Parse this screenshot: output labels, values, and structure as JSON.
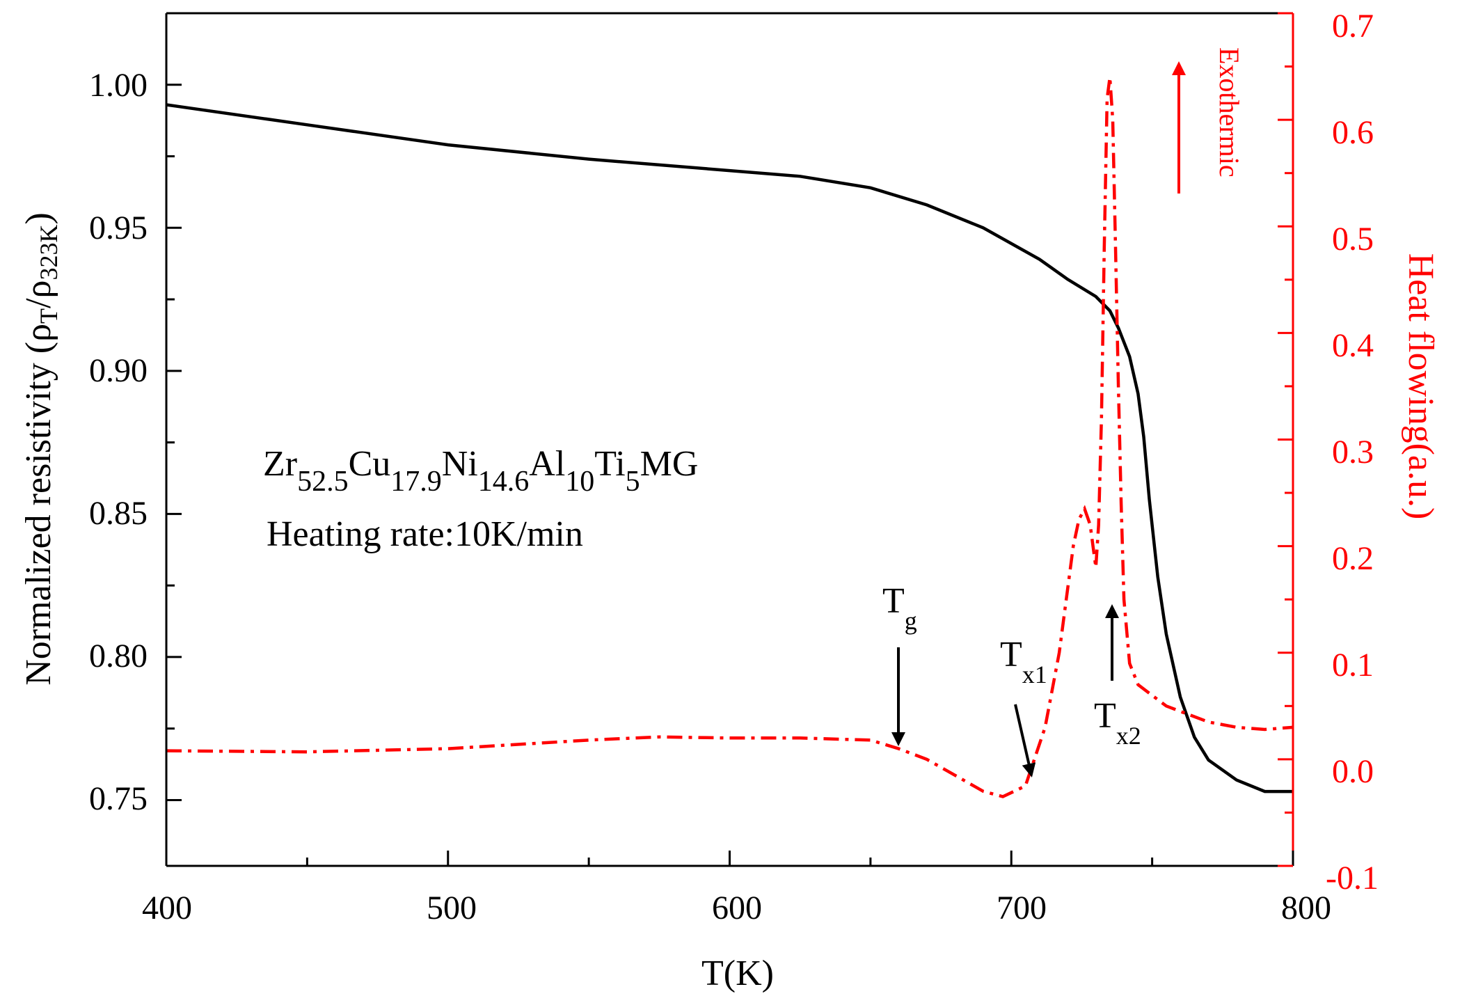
{
  "chart_data": {
    "type": "line",
    "title": "",
    "xlabel": "T(K)",
    "ylabel_left": {
      "main": "Normalized resistivity (",
      "rho": "ρ",
      "sub_t": "T",
      "slash": "/",
      "rho2": "ρ",
      "sub_ref": "323K",
      "close": ")"
    },
    "ylabel_right": "Heat flowing(a.u.)",
    "xlim": [
      400,
      800
    ],
    "ylim_left": [
      0.727,
      1.025
    ],
    "ylim_right": [
      -0.1,
      0.7
    ],
    "x_ticks": [
      "400",
      "500",
      "600",
      "700",
      "800"
    ],
    "y_ticks_left": [
      "0.75",
      "0.80",
      "0.85",
      "0.90",
      "0.95",
      "1.00"
    ],
    "y_ticks_right": [
      "-0.1",
      "0.0",
      "0.1",
      "0.2",
      "0.3",
      "0.4",
      "0.5",
      "0.6",
      "0.7"
    ],
    "colors": {
      "resistivity": "#000000",
      "heat_flow": "#ff0000"
    },
    "series": [
      {
        "name": "Normalized resistivity",
        "axis": "left",
        "style": "solid",
        "x": [
          400,
          450,
          500,
          550,
          575,
          600,
          625,
          650,
          670,
          690,
          710,
          720,
          730,
          735,
          738,
          742,
          745,
          747,
          749,
          752,
          755,
          760,
          765,
          770,
          780,
          790,
          800
        ],
        "y": [
          0.993,
          0.986,
          0.979,
          0.974,
          0.972,
          0.97,
          0.968,
          0.964,
          0.958,
          0.95,
          0.939,
          0.932,
          0.926,
          0.921,
          0.915,
          0.905,
          0.892,
          0.877,
          0.855,
          0.828,
          0.808,
          0.786,
          0.772,
          0.764,
          0.757,
          0.753,
          0.753
        ]
      },
      {
        "name": "Heat flowing",
        "axis": "right",
        "style": "dash-dot",
        "x": [
          400,
          450,
          500,
          550,
          575,
          600,
          625,
          650,
          660,
          670,
          680,
          690,
          697,
          705,
          712,
          717,
          720,
          722,
          724,
          726,
          728,
          729,
          730,
          731,
          732,
          733,
          734,
          735,
          736,
          737,
          738,
          739,
          740,
          742,
          745,
          750,
          755,
          760,
          770,
          780,
          790,
          800
        ],
        "y": [
          0.008,
          0.007,
          0.01,
          0.018,
          0.021,
          0.02,
          0.02,
          0.018,
          0.01,
          0.0,
          -0.015,
          -0.03,
          -0.035,
          -0.025,
          0.03,
          0.1,
          0.16,
          0.2,
          0.225,
          0.235,
          0.22,
          0.2,
          0.18,
          0.22,
          0.32,
          0.48,
          0.62,
          0.64,
          0.6,
          0.48,
          0.35,
          0.24,
          0.15,
          0.09,
          0.07,
          0.06,
          0.05,
          0.045,
          0.035,
          0.03,
          0.028,
          0.03
        ]
      }
    ],
    "annotations": {
      "formula": [
        {
          "t": "Zr",
          "sub": false
        },
        {
          "t": "52.5",
          "sub": true
        },
        {
          "t": "Cu",
          "sub": false
        },
        {
          "t": "17.9",
          "sub": true
        },
        {
          "t": "Ni",
          "sub": false
        },
        {
          "t": "14.6",
          "sub": true
        },
        {
          "t": "Al",
          "sub": false
        },
        {
          "t": "10",
          "sub": true
        },
        {
          "t": "Ti",
          "sub": false
        },
        {
          "t": "5",
          "sub": true
        },
        {
          "t": "MG",
          "sub": false
        }
      ],
      "heating_rate": "Heating rate:10K/min",
      "exothermic": "Exothermic",
      "tg": {
        "base": "T",
        "sub": "g",
        "x": 655
      },
      "tx1": {
        "base": "T",
        "sub": "x1",
        "x": 702
      },
      "tx2": {
        "base": "T",
        "sub": "x2",
        "x": 731
      }
    }
  }
}
